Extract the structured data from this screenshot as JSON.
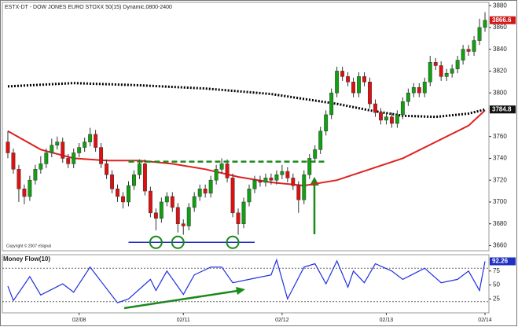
{
  "title": "ESTX-DT - DOW JONES EURO STOXX 50(15) Dynamic,0800-2400",
  "copyright": "Copyright © 2007 eSignal",
  "chart_data": [
    {
      "type": "candlestick",
      "open": [
        3755,
        3745,
        3730,
        3712,
        3705,
        3720,
        3730,
        3735,
        3745,
        3752,
        3755,
        3740,
        3735,
        3745,
        3750,
        3755,
        3762,
        3750,
        3735,
        3725,
        3712,
        3705,
        3700,
        3715,
        3725,
        3735,
        3710,
        3690,
        3685,
        3700,
        3705,
        3695,
        3680,
        3678,
        3695,
        3705,
        3712,
        3708,
        3720,
        3730,
        3735,
        3722,
        3690,
        3680,
        3700,
        3712,
        3720,
        3718,
        3722,
        3720,
        3725,
        3728,
        3722,
        3715,
        3702,
        3725,
        3740,
        3748,
        3765,
        3780,
        3800,
        3820,
        3815,
        3810,
        3800,
        3815,
        3810,
        3790,
        3782,
        3775,
        3778,
        3772,
        3780,
        3792,
        3800,
        3805,
        3800,
        3810,
        3828,
        3825,
        3815,
        3818,
        3822,
        3830,
        3840,
        3838,
        3848,
        3860
      ],
      "high": [
        3765,
        3749,
        3734,
        3716,
        3724,
        3734,
        3742,
        3749,
        3758,
        3760,
        3759,
        3744,
        3749,
        3754,
        3759,
        3768,
        3766,
        3754,
        3739,
        3729,
        3716,
        3709,
        3719,
        3729,
        3739,
        3739,
        3714,
        3694,
        3704,
        3709,
        3709,
        3699,
        3684,
        3699,
        3709,
        3716,
        3716,
        3724,
        3734,
        3740,
        3739,
        3726,
        3694,
        3704,
        3716,
        3724,
        3724,
        3726,
        3726,
        3729,
        3734,
        3732,
        3726,
        3719,
        3729,
        3744,
        3752,
        3769,
        3784,
        3804,
        3824,
        3824,
        3819,
        3814,
        3819,
        3819,
        3814,
        3794,
        3786,
        3782,
        3782,
        3784,
        3796,
        3804,
        3809,
        3809,
        3814,
        3834,
        3832,
        3829,
        3822,
        3826,
        3834,
        3844,
        3844,
        3852,
        3868,
        3874
      ],
      "low": [
        3740,
        3726,
        3700,
        3698,
        3701,
        3716,
        3726,
        3731,
        3741,
        3748,
        3736,
        3731,
        3731,
        3741,
        3746,
        3751,
        3746,
        3731,
        3721,
        3708,
        3700,
        3694,
        3696,
        3711,
        3721,
        3706,
        3686,
        3674,
        3681,
        3696,
        3691,
        3672,
        3670,
        3674,
        3691,
        3701,
        3704,
        3704,
        3716,
        3726,
        3718,
        3686,
        3670,
        3676,
        3696,
        3708,
        3714,
        3714,
        3716,
        3716,
        3721,
        3718,
        3711,
        3690,
        3698,
        3721,
        3736,
        3744,
        3761,
        3776,
        3796,
        3811,
        3806,
        3796,
        3796,
        3806,
        3786,
        3778,
        3771,
        3771,
        3768,
        3768,
        3776,
        3788,
        3796,
        3796,
        3796,
        3806,
        3821,
        3811,
        3811,
        3814,
        3818,
        3826,
        3834,
        3834,
        3844,
        3856
      ],
      "close": [
        3745,
        3730,
        3712,
        3705,
        3720,
        3730,
        3735,
        3745,
        3752,
        3755,
        3740,
        3735,
        3745,
        3750,
        3755,
        3762,
        3750,
        3735,
        3725,
        3712,
        3705,
        3700,
        3715,
        3725,
        3735,
        3710,
        3690,
        3685,
        3700,
        3705,
        3695,
        3680,
        3678,
        3695,
        3705,
        3712,
        3708,
        3720,
        3730,
        3735,
        3722,
        3690,
        3680,
        3700,
        3712,
        3720,
        3718,
        3722,
        3720,
        3725,
        3728,
        3722,
        3715,
        3702,
        3725,
        3740,
        3748,
        3765,
        3780,
        3800,
        3820,
        3815,
        3810,
        3800,
        3815,
        3810,
        3790,
        3782,
        3775,
        3778,
        3772,
        3780,
        3792,
        3800,
        3805,
        3800,
        3810,
        3828,
        3825,
        3815,
        3818,
        3822,
        3830,
        3840,
        3838,
        3848,
        3860,
        3866.6
      ],
      "up_color": "#10a010",
      "down_color": "#e01010",
      "xlim": [
        -1,
        88
      ],
      "xticks": [
        {
          "value": 13,
          "label": "02/08"
        },
        {
          "value": 32,
          "label": "02/11"
        },
        {
          "value": 50,
          "label": "02/12"
        },
        {
          "value": 69,
          "label": "02/13"
        },
        {
          "value": 87,
          "label": "02/14"
        }
      ],
      "ylim": [
        3656,
        3883
      ],
      "yticks": [
        3660,
        3680,
        3700,
        3720,
        3740,
        3760,
        3800,
        3820,
        3840,
        3860,
        3880
      ],
      "overlays": [
        {
          "x": [
            0,
            6,
            12,
            18,
            24,
            30,
            36,
            42,
            48,
            54,
            60,
            66,
            72,
            78,
            84,
            87
          ],
          "values": [
            3765,
            3748,
            3740,
            3738,
            3738,
            3735,
            3730,
            3723,
            3718,
            3715,
            3720,
            3730,
            3740,
            3755,
            3770,
            3784
          ],
          "color": "#e02020",
          "style": "solid"
        },
        {
          "x": [
            0,
            12,
            24,
            36,
            48,
            60,
            66,
            72,
            78,
            84,
            87
          ],
          "values": [
            3806,
            3809,
            3807,
            3804,
            3799,
            3790,
            3784,
            3779,
            3778,
            3781,
            3784.8
          ],
          "color": "#000000",
          "style": "dotted"
        }
      ],
      "resistance": {
        "value": 3737,
        "x": [
          22,
          58
        ],
        "color": "#1a8a1a"
      },
      "support": {
        "value": 3663,
        "x": [
          22,
          45
        ],
        "color": "#2030c0"
      },
      "circles": [
        27,
        31,
        41
      ]
    },
    {
      "type": "line",
      "title": "Money Flow(10)",
      "x": [
        0,
        1,
        4,
        6,
        10,
        12,
        15,
        20,
        22,
        26,
        27,
        29,
        32,
        34,
        37,
        39,
        41,
        44,
        48,
        49,
        51,
        54,
        56,
        58,
        60,
        62,
        63,
        65,
        67,
        70,
        72,
        74,
        76,
        79,
        82,
        84,
        86,
        87
      ],
      "values": [
        48,
        22,
        65,
        32,
        52,
        37,
        82,
        18,
        25,
        60,
        40,
        75,
        33,
        68,
        82,
        82,
        54,
        60,
        68,
        95,
        25,
        82,
        88,
        52,
        93,
        46,
        75,
        54,
        88,
        75,
        60,
        70,
        80,
        54,
        60,
        75,
        40,
        92.26
      ],
      "color": "#2030e0",
      "xlim": [
        -1,
        88
      ],
      "ylim": [
        0,
        100
      ],
      "yticks": [
        25,
        50,
        75
      ],
      "levels": [
        80,
        20
      ]
    }
  ]
}
